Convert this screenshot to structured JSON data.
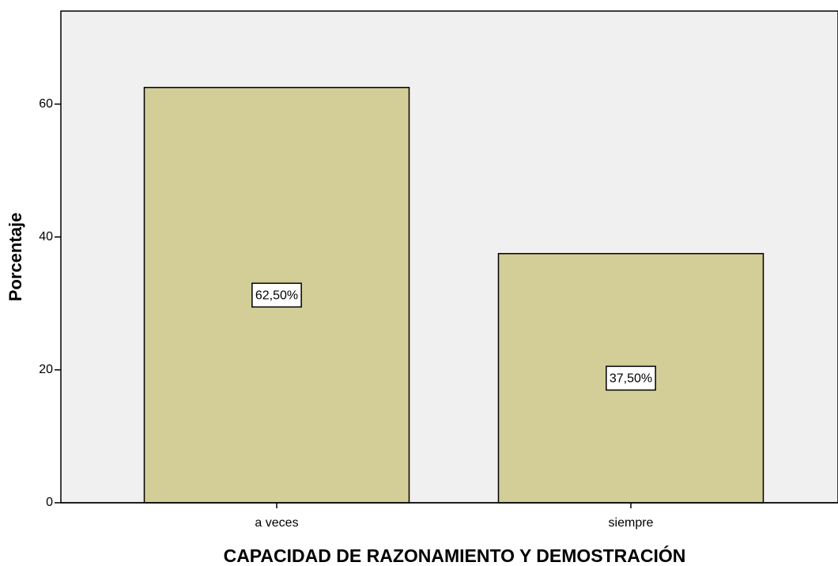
{
  "chart_data": {
    "type": "bar",
    "x_label": "CAPACIDAD DE RAZONAMIENTO Y DEMOSTRACIÓN",
    "y_label": "Porcentaje",
    "categories": [
      "a veces",
      "siempre"
    ],
    "values": [
      62.5,
      37.5
    ],
    "value_labels": [
      "62,50%",
      "37,50%"
    ],
    "color": "#d3cd98",
    "ylim": [
      0,
      74
    ],
    "yticks": [
      0,
      20,
      40,
      60
    ]
  }
}
